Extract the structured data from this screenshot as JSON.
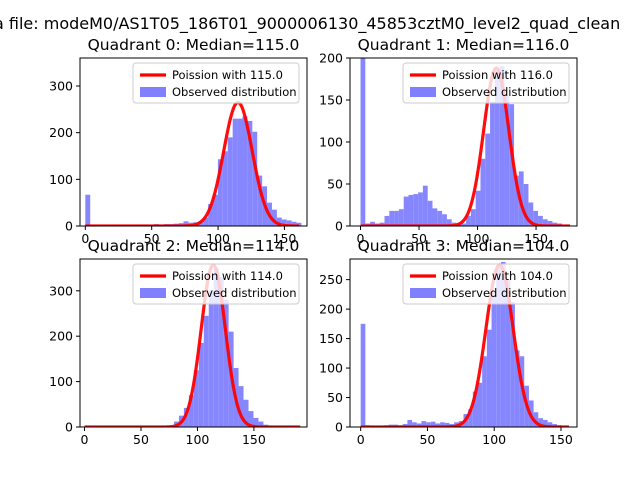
{
  "figure_title": "a file: modeM0/AS1T05_186T01_9000006130_45853cztM0_level2_quad_clean",
  "colors": {
    "poisson_line": "#ff0000",
    "observed_bar": "#8080ff",
    "axes": "#000000",
    "legend_border": "#cccccc"
  },
  "chart_data": [
    {
      "type": "bar",
      "title": "Quadrant 0: Median=115.0",
      "xlim": [
        -4,
        167
      ],
      "ylim": [
        0,
        360
      ],
      "xticks": [
        0,
        50,
        100,
        150
      ],
      "yticks": [
        0,
        100,
        200,
        300
      ],
      "legend_position": "upper right",
      "series": [
        {
          "name": "Poission with 115.0",
          "kind": "line",
          "mean": 115.0,
          "peak": 265
        },
        {
          "name": "Observed distribution",
          "kind": "histogram",
          "bin_width": 3.7,
          "bars": [
            [
              0,
              67
            ],
            [
              3.7,
              2
            ],
            [
              7.4,
              1
            ],
            [
              11.1,
              1
            ],
            [
              14.8,
              1
            ],
            [
              18.5,
              1
            ],
            [
              22.2,
              2
            ],
            [
              25.9,
              2
            ],
            [
              29.6,
              1
            ],
            [
              33.3,
              2
            ],
            [
              37,
              2
            ],
            [
              40.7,
              3
            ],
            [
              44.4,
              3
            ],
            [
              48.1,
              2
            ],
            [
              51.8,
              4
            ],
            [
              55.5,
              3
            ],
            [
              59.2,
              4
            ],
            [
              62.9,
              4
            ],
            [
              66.6,
              5
            ],
            [
              70.3,
              6
            ],
            [
              74,
              10
            ],
            [
              77.7,
              7
            ],
            [
              81.4,
              8
            ],
            [
              85.1,
              10
            ],
            [
              88.8,
              18
            ],
            [
              92.5,
              47
            ],
            [
              96.2,
              67
            ],
            [
              99.9,
              143
            ],
            [
              103.6,
              160
            ],
            [
              107.3,
              190
            ],
            [
              111,
              230
            ],
            [
              114.7,
              230
            ],
            [
              118.4,
              235
            ],
            [
              122.1,
              225
            ],
            [
              125.8,
              202
            ],
            [
              129.5,
              108
            ],
            [
              133.2,
              85
            ],
            [
              136.9,
              50
            ],
            [
              140.6,
              35
            ],
            [
              144.3,
              18
            ],
            [
              148,
              14
            ],
            [
              151.7,
              12
            ],
            [
              155.4,
              9
            ],
            [
              159.1,
              7
            ]
          ]
        }
      ]
    },
    {
      "type": "bar",
      "title": "Quadrant 1: Median=116.0",
      "xlim": [
        -9,
        185
      ],
      "ylim": [
        0,
        200
      ],
      "xticks": [
        0,
        50,
        100,
        150
      ],
      "yticks": [
        0,
        50,
        100,
        150,
        200
      ],
      "legend_position": "upper right",
      "series": [
        {
          "name": "Poission with 116.0",
          "kind": "line",
          "mean": 116.0,
          "peak": 188
        },
        {
          "name": "Observed distribution",
          "kind": "histogram",
          "bin_width": 4.1,
          "bars": [
            [
              0,
              200
            ],
            [
              4.1,
              3
            ],
            [
              8.2,
              5
            ],
            [
              12.3,
              3
            ],
            [
              16.4,
              4
            ],
            [
              20.5,
              12
            ],
            [
              24.6,
              18
            ],
            [
              28.7,
              18
            ],
            [
              32.8,
              20
            ],
            [
              36.9,
              35
            ],
            [
              41,
              37
            ],
            [
              45.1,
              38
            ],
            [
              49.2,
              40
            ],
            [
              53.3,
              48
            ],
            [
              57.4,
              30
            ],
            [
              61.5,
              21
            ],
            [
              65.6,
              18
            ],
            [
              69.7,
              14
            ],
            [
              73.8,
              8
            ],
            [
              77.9,
              4
            ],
            [
              82,
              3
            ],
            [
              86.1,
              3
            ],
            [
              90.2,
              12
            ],
            [
              94.3,
              20
            ],
            [
              98.4,
              42
            ],
            [
              102.5,
              80
            ],
            [
              106.6,
              110
            ],
            [
              110.7,
              148
            ],
            [
              114.8,
              185
            ],
            [
              118.9,
              190
            ],
            [
              123,
              155
            ],
            [
              127.1,
              145
            ],
            [
              131.2,
              60
            ],
            [
              135.3,
              65
            ],
            [
              139.4,
              50
            ],
            [
              143.5,
              28
            ],
            [
              147.6,
              18
            ],
            [
              151.7,
              12
            ],
            [
              155.8,
              8
            ],
            [
              159.9,
              6
            ],
            [
              164,
              4
            ],
            [
              168.1,
              3
            ]
          ]
        }
      ]
    },
    {
      "type": "bar",
      "title": "Quadrant 2: Median=114.0",
      "xlim": [
        -4,
        197
      ],
      "ylim": [
        0,
        370
      ],
      "xticks": [
        0,
        50,
        100,
        150
      ],
      "yticks": [
        0,
        100,
        200,
        300
      ],
      "legend_position": "upper right",
      "series": [
        {
          "name": "Poission with 114.0",
          "kind": "line",
          "mean": 114.0,
          "peak": 357
        },
        {
          "name": "Observed distribution",
          "kind": "histogram",
          "bin_width": 4.4,
          "bars": [
            [
              79.2,
              12
            ],
            [
              83.6,
              25
            ],
            [
              88,
              42
            ],
            [
              92.4,
              70
            ],
            [
              96.8,
              125
            ],
            [
              101.2,
              185
            ],
            [
              105.6,
              245
            ],
            [
              110,
              300
            ],
            [
              114.4,
              350
            ],
            [
              118.8,
              330
            ],
            [
              123.2,
              280
            ],
            [
              127.6,
              210
            ],
            [
              132,
              130
            ],
            [
              136.4,
              90
            ],
            [
              140.8,
              60
            ],
            [
              145.2,
              35
            ],
            [
              149.6,
              20
            ],
            [
              154,
              12
            ],
            [
              158.4,
              5
            ],
            [
              162.8,
              3
            ]
          ]
        }
      ]
    },
    {
      "type": "bar",
      "title": "Quadrant 3: Median=104.0",
      "xlim": [
        -8,
        162
      ],
      "ylim": [
        0,
        285
      ],
      "xticks": [
        0,
        50,
        100,
        150
      ],
      "yticks": [
        0,
        50,
        100,
        150,
        200,
        250
      ],
      "legend_position": "upper right",
      "series": [
        {
          "name": "Poission with 104.0",
          "kind": "line",
          "mean": 104.0,
          "peak": 275
        },
        {
          "name": "Observed distribution",
          "kind": "histogram",
          "bin_width": 3.5,
          "bars": [
            [
              0,
              175
            ],
            [
              3.5,
              3
            ],
            [
              7,
              2
            ],
            [
              10.5,
              2
            ],
            [
              14,
              2
            ],
            [
              17.5,
              3
            ],
            [
              21,
              4
            ],
            [
              24.5,
              4
            ],
            [
              28,
              3
            ],
            [
              31.5,
              5
            ],
            [
              35,
              12
            ],
            [
              38.5,
              8
            ],
            [
              42,
              6
            ],
            [
              45.5,
              10
            ],
            [
              49,
              8
            ],
            [
              52.5,
              9
            ],
            [
              56,
              6
            ],
            [
              59.5,
              8
            ],
            [
              63,
              7
            ],
            [
              66.5,
              5
            ],
            [
              70,
              8
            ],
            [
              73.5,
              10
            ],
            [
              77,
              22
            ],
            [
              80.5,
              30
            ],
            [
              84,
              60
            ],
            [
              87.5,
              75
            ],
            [
              91,
              120
            ],
            [
              94.5,
              165
            ],
            [
              98,
              228
            ],
            [
              101.5,
              272
            ],
            [
              105,
              280
            ],
            [
              108.5,
              250
            ],
            [
              112,
              212
            ],
            [
              115.5,
              130
            ],
            [
              119,
              120
            ],
            [
              122.5,
              70
            ],
            [
              126,
              45
            ],
            [
              129.5,
              25
            ],
            [
              133,
              15
            ],
            [
              136.5,
              12
            ],
            [
              140,
              8
            ],
            [
              143.5,
              5
            ],
            [
              147,
              3
            ]
          ]
        }
      ]
    }
  ]
}
